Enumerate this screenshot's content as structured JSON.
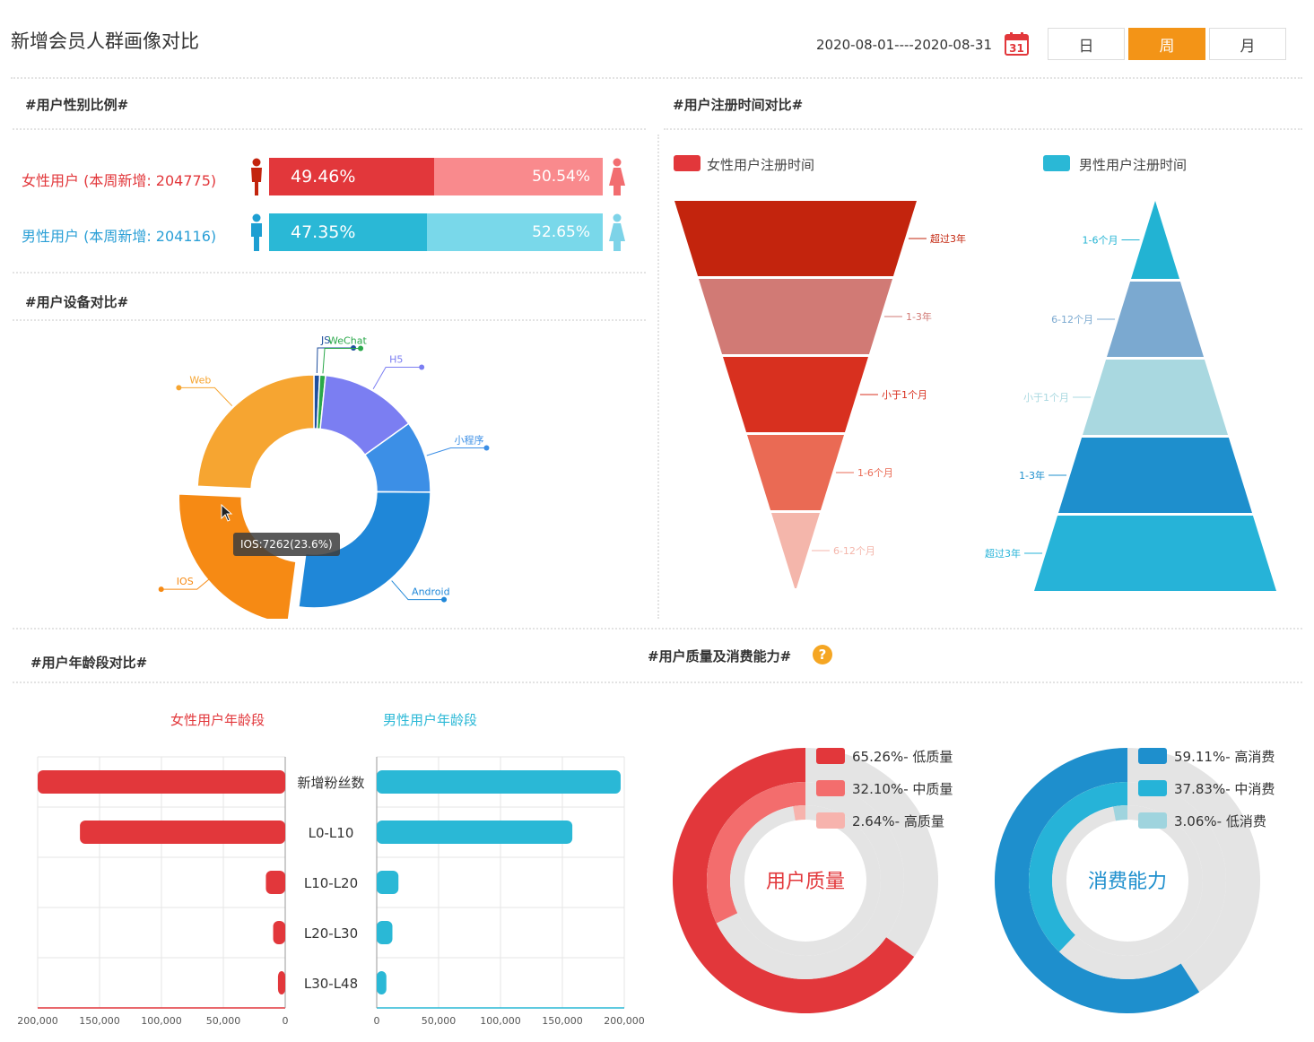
{
  "header": {
    "title": "新增会员人群画像对比",
    "date_range": "2020-08-01----2020-08-31",
    "calendar_day": "31",
    "tabs": [
      "日",
      "周",
      "月"
    ],
    "active_tab": "周",
    "accent": "#f39417"
  },
  "sections": {
    "gender": "#用户性别比例#",
    "register": "#用户注册时间对比#",
    "device": "#用户设备对比#",
    "age": "#用户年龄段对比#",
    "quality": "#用户质量及消费能力#"
  },
  "chart_data": [
    {
      "id": "gender",
      "type": "bar",
      "title": "#用户性别比例#",
      "rows": [
        {
          "label": "女性用户 (本周新增: 204775)",
          "left_pct": 49.46,
          "right_pct": 50.54,
          "left_text": "49.46%",
          "right_text": "50.54%",
          "colors": [
            "#e2373b",
            "#f98a8d"
          ]
        },
        {
          "label": "男性用户 (本周新增: 204116)",
          "left_pct": 47.35,
          "right_pct": 52.65,
          "left_text": "47.35%",
          "right_text": "52.65%",
          "colors": [
            "#2ab8d6",
            "#79d8ea"
          ]
        }
      ]
    },
    {
      "id": "device",
      "type": "pie",
      "title": "#用户设备对比#",
      "slices": [
        {
          "name": "JS",
          "value": 0.8,
          "color": "#1f4f9e"
        },
        {
          "name": "WeChat",
          "value": 0.8,
          "color": "#2aa84a"
        },
        {
          "name": "H5",
          "value": 13.5,
          "color": "#7b7ef2"
        },
        {
          "name": "小程序",
          "value": 10.0,
          "color": "#3c8fe6"
        },
        {
          "name": "Android",
          "value": 27.0,
          "color": "#1f87d8"
        },
        {
          "name": "IOS",
          "value": 23.6,
          "color": "#f68a14"
        },
        {
          "name": "Web",
          "value": 24.3,
          "color": "#f6a531"
        }
      ],
      "tooltip": "IOS:7262(23.6%)"
    },
    {
      "id": "register",
      "type": "funnel",
      "title": "#用户注册时间对比#",
      "series": [
        {
          "name": "女性用户注册时间",
          "color": "#e2373b",
          "levels": [
            "超过3年",
            "1-3年",
            "小于1个月",
            "1-6个月",
            "6-12个月"
          ],
          "colors": [
            "#c3240d",
            "#d17a75",
            "#d8301f",
            "#ea6a54",
            "#f4b6ab"
          ]
        },
        {
          "name": "男性用户注册时间",
          "color": "#2ab8d6",
          "levels": [
            "1-6个月",
            "6-12个月",
            "小于1个月",
            "1-3年",
            "超过3年"
          ],
          "colors": [
            "#22b3d3",
            "#7ba9d0",
            "#a9d8e0",
            "#1e8fcd",
            "#26b3d8"
          ]
        }
      ]
    },
    {
      "id": "age",
      "type": "bar",
      "title": "#用户年龄段对比#",
      "categories": [
        "新增粉丝数",
        "L0-L10",
        "L10-L20",
        "L20-L30",
        "L30-L48"
      ],
      "series": [
        {
          "name": "女性用户年龄段",
          "color": "#e2373b",
          "values": [
            205000,
            170000,
            16000,
            10000,
            6000
          ]
        },
        {
          "name": "男性用户年龄段",
          "color": "#2ab8d6",
          "values": [
            202000,
            162000,
            18000,
            13000,
            8000
          ]
        }
      ],
      "left_ticks": [
        "200,000",
        "150,000",
        "100,000",
        "50,000",
        "0"
      ],
      "right_ticks": [
        "0",
        "50,000",
        "100,000",
        "150,000",
        "200,000"
      ],
      "xlim": [
        0,
        205000
      ]
    },
    {
      "id": "quality",
      "type": "pie",
      "title": "用户质量",
      "slices": [
        {
          "name": "65.26%- 低质量",
          "value": 65.26,
          "color": "#e2373b"
        },
        {
          "name": "32.10%- 中质量",
          "value": 32.1,
          "color": "#f36d6d"
        },
        {
          "name": "2.64%- 高质量",
          "value": 2.64,
          "color": "#f7b3ad"
        }
      ]
    },
    {
      "id": "consumption",
      "type": "pie",
      "title": "消费能力",
      "slices": [
        {
          "name": "59.11%- 高消费",
          "value": 59.11,
          "color": "#1e8fcd"
        },
        {
          "name": "37.83%- 中消费",
          "value": 37.83,
          "color": "#26b3d8"
        },
        {
          "name": "3.06%- 低消费",
          "value": 3.06,
          "color": "#9fd4de"
        }
      ]
    }
  ]
}
